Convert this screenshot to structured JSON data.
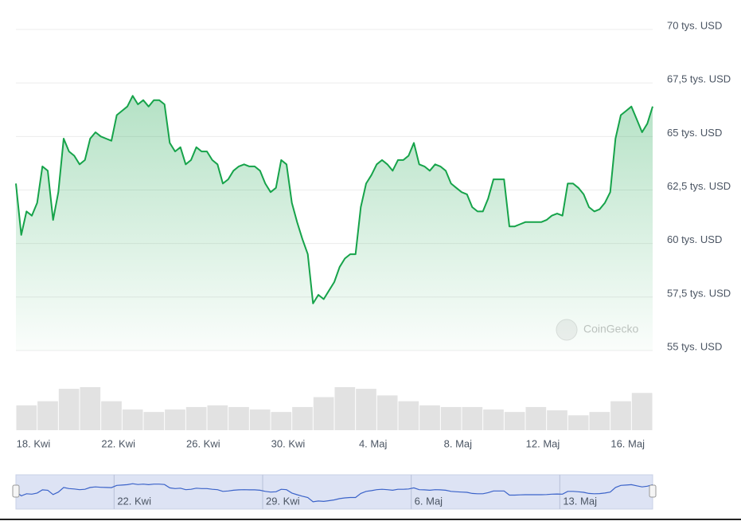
{
  "chart_data": {
    "type": "line",
    "color": "#16a34a",
    "values": [
      62.8,
      60.4,
      61.5,
      61.3,
      61.9,
      63.6,
      63.4,
      61.1,
      62.4,
      64.9,
      64.3,
      64.1,
      63.7,
      63.9,
      64.9,
      65.2,
      65.0,
      64.9,
      64.8,
      66.0,
      66.2,
      66.4,
      66.9,
      66.5,
      66.7,
      66.4,
      66.7,
      66.7,
      66.5,
      64.7,
      64.3,
      64.5,
      63.7,
      63.9,
      64.5,
      64.3,
      64.3,
      63.9,
      63.7,
      62.8,
      63.0,
      63.4,
      63.6,
      63.7,
      63.6,
      63.6,
      63.4,
      62.8,
      62.4,
      62.6,
      63.9,
      63.7,
      61.9,
      61.0,
      60.2,
      59.5,
      57.2,
      57.6,
      57.4,
      57.8,
      58.2,
      58.9,
      59.3,
      59.5,
      59.5,
      61.7,
      62.8,
      63.2,
      63.7,
      63.9,
      63.7,
      63.4,
      63.9,
      63.9,
      64.1,
      64.7,
      63.7,
      63.6,
      63.4,
      63.7,
      63.6,
      63.4,
      62.8,
      62.6,
      62.4,
      62.3,
      61.7,
      61.5,
      61.5,
      62.1,
      63.0,
      63.0,
      63.0,
      60.8,
      60.8,
      60.9,
      61.0,
      61.0,
      61.0,
      61.0,
      61.1,
      61.3,
      61.4,
      61.3,
      62.8,
      62.8,
      62.6,
      62.3,
      61.7,
      61.5,
      61.6,
      61.9,
      62.4,
      64.9,
      66.0,
      66.2,
      66.4,
      65.8,
      65.2,
      65.6,
      66.4
    ],
    "xlim": [
      0,
      120
    ],
    "xticks": [
      {
        "value": 3.3,
        "label": "18. Kwi"
      },
      {
        "value": 19.3,
        "label": "22. Kwi"
      },
      {
        "value": 35.3,
        "label": "26. Kwi"
      },
      {
        "value": 51.3,
        "label": "30. Kwi"
      },
      {
        "value": 67.3,
        "label": "4. Maj"
      },
      {
        "value": 83.3,
        "label": "8. Maj"
      },
      {
        "value": 99.3,
        "label": "12. Maj"
      },
      {
        "value": 115.3,
        "label": "16. Maj"
      }
    ],
    "ylim": [
      55,
      70
    ],
    "yticks": [
      {
        "value": 55,
        "label": "55 tys. USD"
      },
      {
        "value": 57.5,
        "label": "57,5 tys. USD"
      },
      {
        "value": 60,
        "label": "60 tys. USD"
      },
      {
        "value": 62.5,
        "label": "62,5 tys. USD"
      },
      {
        "value": 65,
        "label": "65 tys. USD"
      },
      {
        "value": 67.5,
        "label": "67,5 tys. USD"
      },
      {
        "value": 70,
        "label": "70 tys. USD"
      }
    ],
    "grid": true,
    "watermark": "CoinGecko",
    "volume": {
      "color": "#e2e2e2",
      "values": [
        30,
        35,
        50,
        52,
        35,
        25,
        22,
        25,
        28,
        30,
        28,
        25,
        22,
        28,
        40,
        52,
        50,
        42,
        35,
        30,
        28,
        28,
        25,
        22,
        28,
        24,
        18,
        22,
        35,
        45
      ]
    },
    "navigator": {
      "color": "#3b63c9",
      "background": "#dde3f4",
      "xticks": [
        {
          "value": 18.5,
          "label": "22. Kwi"
        },
        {
          "value": 46.5,
          "label": "29. Kwi"
        },
        {
          "value": 74.5,
          "label": "6. Maj"
        },
        {
          "value": 102.5,
          "label": "13. Maj"
        }
      ]
    }
  }
}
